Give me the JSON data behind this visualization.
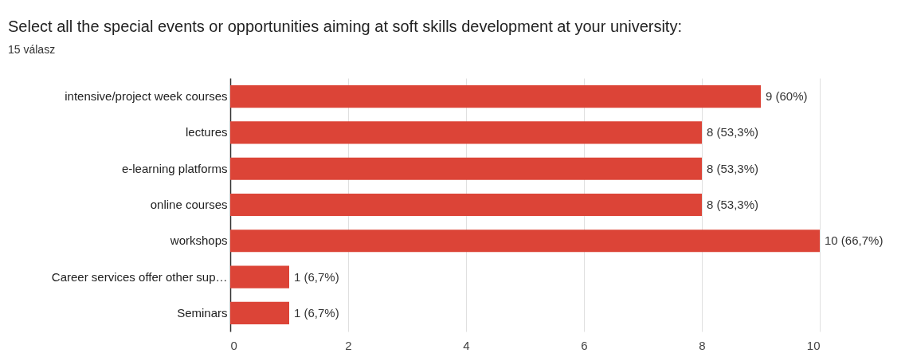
{
  "chart_data": {
    "type": "bar",
    "orientation": "horizontal",
    "title": "Select all the special events or opportunities aiming at soft skills development at your university:",
    "subtitle": "15 válasz",
    "categories": [
      "intensive/project week courses",
      "lectures",
      "e-learning platforms",
      "online courses",
      "workshops",
      "Career services offer other sup…",
      "Seminars"
    ],
    "values": [
      9,
      8,
      8,
      8,
      10,
      1,
      1
    ],
    "value_labels": [
      "9 (60%)",
      "8 (53,3%)",
      "8 (53,3%)",
      "8 (53,3%)",
      "10 (66,7%)",
      "1 (6,7%)",
      "1 (6,7%)"
    ],
    "color": "#dc4437",
    "xlim": [
      0,
      10
    ],
    "xticks": [
      0,
      2,
      4,
      6,
      8,
      10
    ],
    "grid": "x"
  }
}
